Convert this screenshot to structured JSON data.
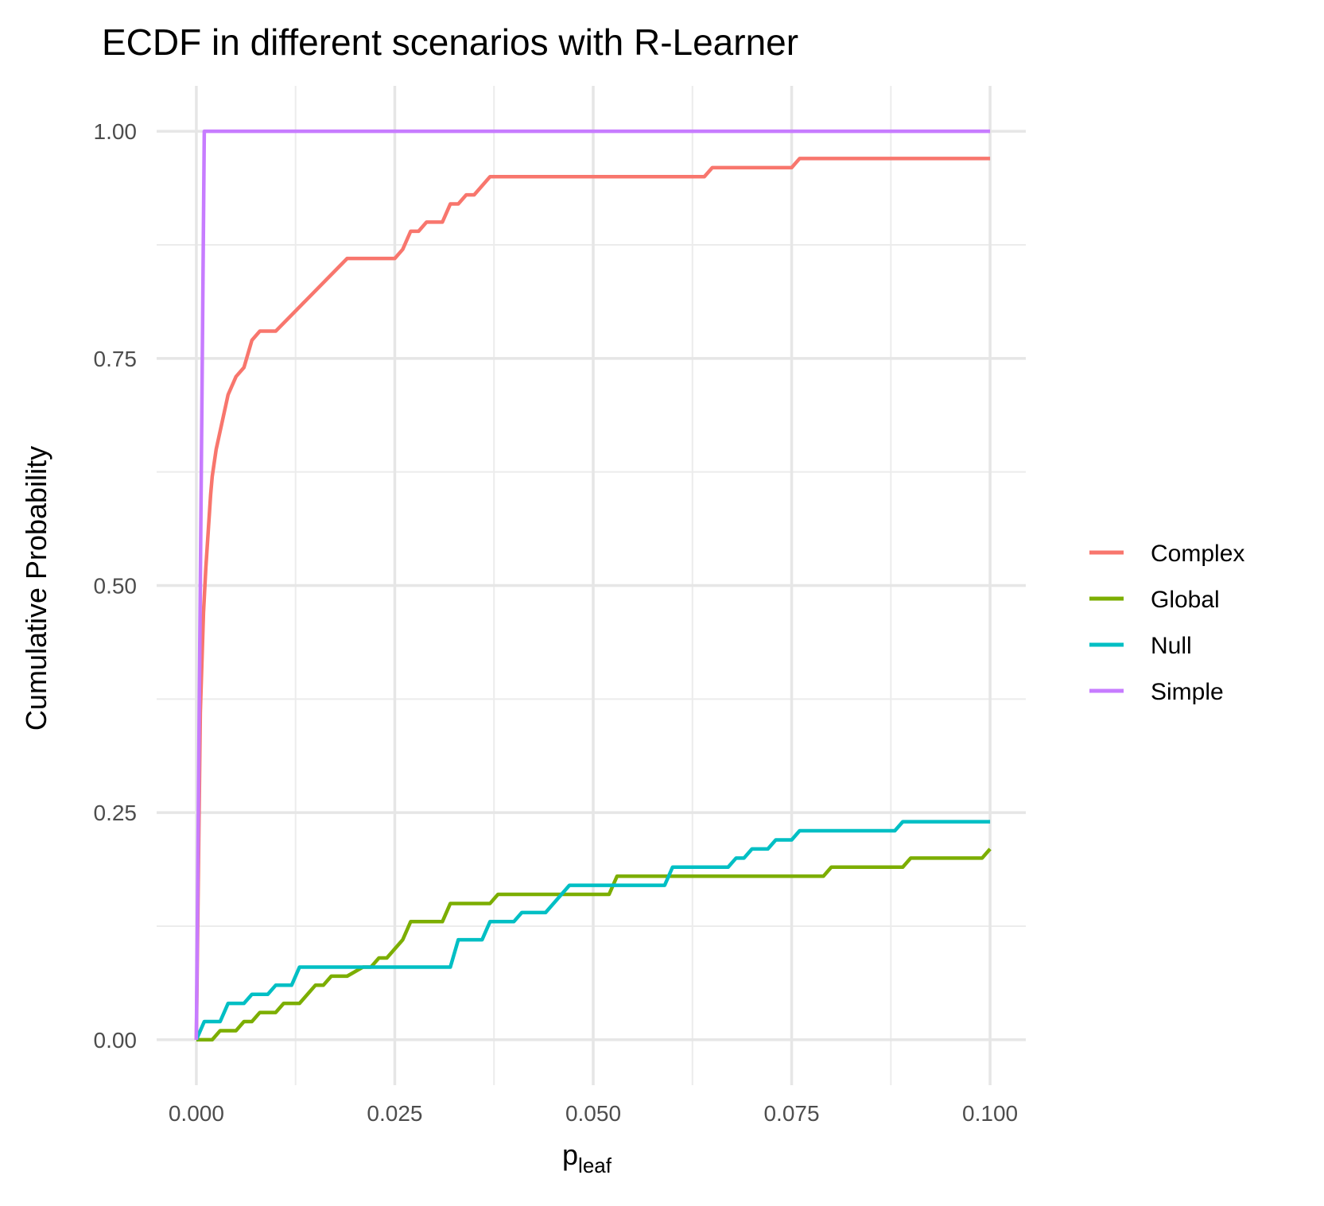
{
  "chart_data": {
    "type": "line",
    "title": "ECDF in different scenarios with R-Learner",
    "xlabel_main": "p",
    "xlabel_sub": "leaf",
    "ylabel": "Cumulative Probability",
    "xlim": [
      -0.005,
      0.1045
    ],
    "ylim": [
      -0.05,
      1.05
    ],
    "x_ticks": [
      0,
      0.025,
      0.05,
      0.075,
      0.1
    ],
    "x_tick_labels": [
      "0.000",
      "0.025",
      "0.050",
      "0.075",
      "0.100"
    ],
    "x_minor": [
      0.0125,
      0.0375,
      0.0625,
      0.0875
    ],
    "y_ticks": [
      0,
      0.25,
      0.5,
      0.75,
      1.0
    ],
    "y_tick_labels": [
      "0.00",
      "0.25",
      "0.50",
      "0.75",
      "1.00"
    ],
    "y_minor": [
      0.125,
      0.375,
      0.625,
      0.875
    ],
    "grid": true,
    "legend_position": "right",
    "series": [
      {
        "name": "Complex",
        "color": "#F8766D",
        "points": [
          [
            0,
            0
          ],
          [
            0.0005,
            0.36
          ],
          [
            0.0009,
            0.47
          ],
          [
            0.0012,
            0.52
          ],
          [
            0.0015,
            0.56
          ],
          [
            0.0018,
            0.6
          ],
          [
            0.002,
            0.62
          ],
          [
            0.0025,
            0.65
          ],
          [
            0.003,
            0.67
          ],
          [
            0.0035,
            0.69
          ],
          [
            0.004,
            0.71
          ],
          [
            0.005,
            0.73
          ],
          [
            0.006,
            0.74
          ],
          [
            0.007,
            0.77
          ],
          [
            0.008,
            0.78
          ],
          [
            0.01,
            0.78
          ],
          [
            0.019,
            0.86
          ],
          [
            0.025,
            0.86
          ],
          [
            0.026,
            0.87
          ],
          [
            0.027,
            0.89
          ],
          [
            0.028,
            0.89
          ],
          [
            0.029,
            0.9
          ],
          [
            0.031,
            0.9
          ],
          [
            0.032,
            0.92
          ],
          [
            0.033,
            0.92
          ],
          [
            0.034,
            0.93
          ],
          [
            0.035,
            0.93
          ],
          [
            0.037,
            0.95
          ],
          [
            0.064,
            0.95
          ],
          [
            0.065,
            0.96
          ],
          [
            0.075,
            0.96
          ],
          [
            0.076,
            0.97
          ],
          [
            0.1,
            0.97
          ]
        ]
      },
      {
        "name": "Global",
        "color": "#7CAE00",
        "points": [
          [
            0,
            0
          ],
          [
            0.002,
            0
          ],
          [
            0.003,
            0.01
          ],
          [
            0.005,
            0.01
          ],
          [
            0.006,
            0.02
          ],
          [
            0.007,
            0.02
          ],
          [
            0.008,
            0.03
          ],
          [
            0.01,
            0.03
          ],
          [
            0.011,
            0.04
          ],
          [
            0.013,
            0.04
          ],
          [
            0.015,
            0.06
          ],
          [
            0.016,
            0.06
          ],
          [
            0.017,
            0.07
          ],
          [
            0.019,
            0.07
          ],
          [
            0.021,
            0.08
          ],
          [
            0.022,
            0.08
          ],
          [
            0.023,
            0.09
          ],
          [
            0.024,
            0.09
          ],
          [
            0.026,
            0.11
          ],
          [
            0.027,
            0.13
          ],
          [
            0.031,
            0.13
          ],
          [
            0.032,
            0.15
          ],
          [
            0.037,
            0.15
          ],
          [
            0.038,
            0.16
          ],
          [
            0.052,
            0.16
          ],
          [
            0.053,
            0.18
          ],
          [
            0.079,
            0.18
          ],
          [
            0.08,
            0.19
          ],
          [
            0.089,
            0.19
          ],
          [
            0.09,
            0.2
          ],
          [
            0.099,
            0.2
          ],
          [
            0.1,
            0.21
          ]
        ]
      },
      {
        "name": "Null",
        "color": "#00BFC4",
        "points": [
          [
            0,
            0
          ],
          [
            0.001,
            0.02
          ],
          [
            0.003,
            0.02
          ],
          [
            0.004,
            0.04
          ],
          [
            0.006,
            0.04
          ],
          [
            0.007,
            0.05
          ],
          [
            0.009,
            0.05
          ],
          [
            0.01,
            0.06
          ],
          [
            0.012,
            0.06
          ],
          [
            0.013,
            0.08
          ],
          [
            0.032,
            0.08
          ],
          [
            0.033,
            0.11
          ],
          [
            0.036,
            0.11
          ],
          [
            0.037,
            0.13
          ],
          [
            0.04,
            0.13
          ],
          [
            0.041,
            0.14
          ],
          [
            0.044,
            0.14
          ],
          [
            0.047,
            0.17
          ],
          [
            0.059,
            0.17
          ],
          [
            0.06,
            0.19
          ],
          [
            0.067,
            0.19
          ],
          [
            0.068,
            0.2
          ],
          [
            0.069,
            0.2
          ],
          [
            0.07,
            0.21
          ],
          [
            0.072,
            0.21
          ],
          [
            0.073,
            0.22
          ],
          [
            0.075,
            0.22
          ],
          [
            0.076,
            0.23
          ],
          [
            0.088,
            0.23
          ],
          [
            0.089,
            0.24
          ],
          [
            0.1,
            0.24
          ]
        ]
      },
      {
        "name": "Simple",
        "color": "#C77CFF",
        "points": [
          [
            0,
            0
          ],
          [
            0.001,
            1.0
          ],
          [
            0.1,
            1.0
          ]
        ]
      }
    ]
  }
}
